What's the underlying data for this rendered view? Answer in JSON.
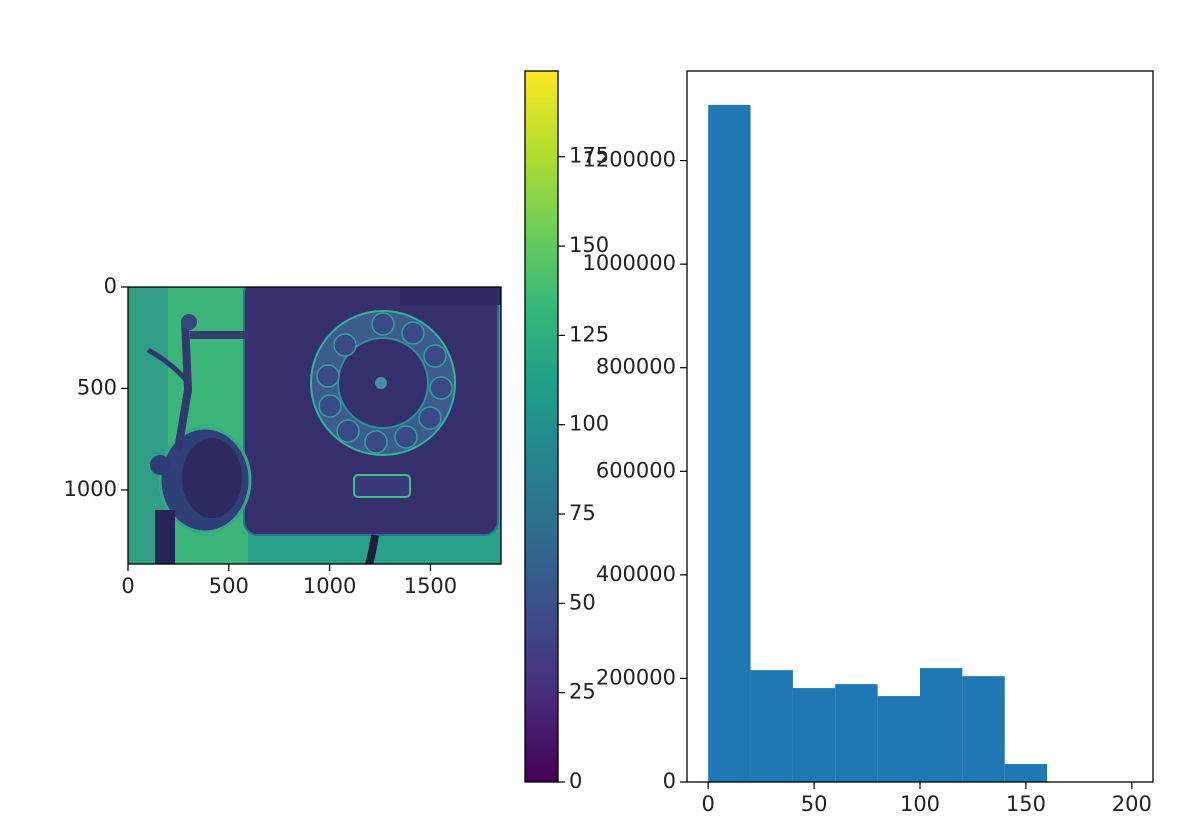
{
  "chart_data": [
    {
      "type": "image",
      "colormap": "viridis",
      "xlim": [
        0,
        1850
      ],
      "ylim": [
        1365,
        0
      ],
      "xticks": [
        0,
        500,
        1000,
        1500
      ],
      "yticks": [
        0,
        500,
        1000
      ]
    },
    {
      "type": "colorbar",
      "colormap": "viridis",
      "ylim": [
        0,
        199
      ],
      "yticks": [
        0,
        25,
        50,
        75,
        100,
        125,
        150,
        175
      ]
    },
    {
      "type": "histogram",
      "color": "#1f77b4",
      "bins": [
        0,
        20,
        40,
        60,
        80,
        100,
        120,
        140,
        160,
        180,
        200
      ],
      "values": [
        1307600,
        216000,
        181300,
        189000,
        165900,
        219900,
        204400,
        34700,
        0,
        0
      ],
      "xlim": [
        -10,
        210
      ],
      "ylim": [
        0,
        1373000
      ],
      "xticks": [
        0,
        50,
        100,
        150,
        200
      ],
      "yticks": [
        0,
        200000,
        400000,
        600000,
        800000,
        1000000,
        1200000
      ]
    }
  ]
}
